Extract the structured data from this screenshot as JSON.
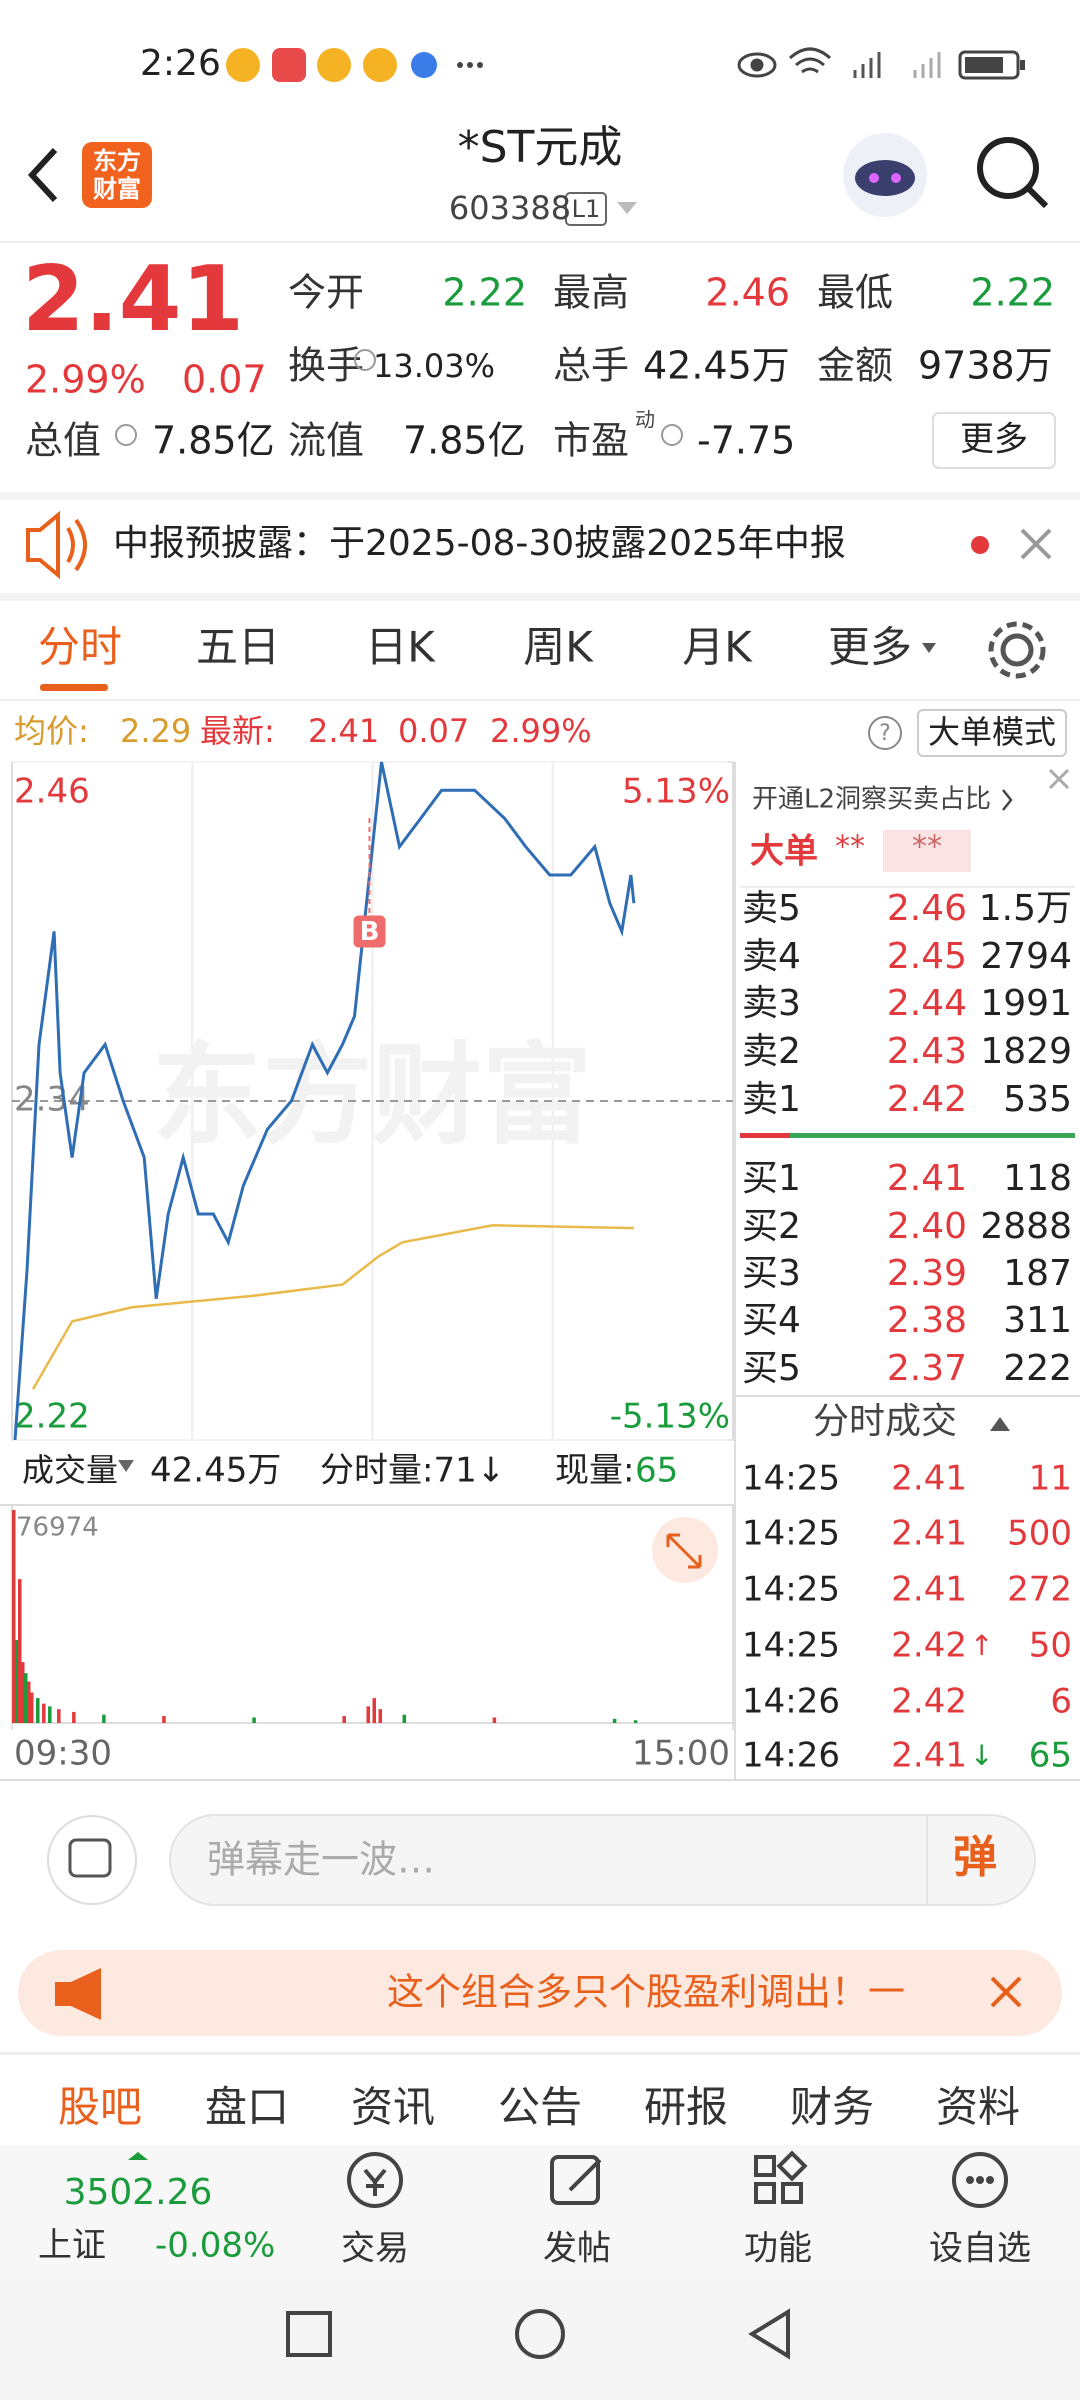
{
  "status_bar": {
    "time": "2:26"
  },
  "header": {
    "logo": [
      "东方",
      "财富"
    ],
    "title": "*ST元成",
    "code": "603388",
    "level": "L1"
  },
  "quote": {
    "price": "2.41",
    "change_pct": "2.99%",
    "change": "0.07",
    "fields": [
      {
        "label": "今开",
        "value": "2.22",
        "color": "#1a9b3c"
      },
      {
        "label": "最高",
        "value": "2.46",
        "color": "#e4393c"
      },
      {
        "label": "最低",
        "value": "2.22",
        "color": "#1a9b3c"
      },
      {
        "label": "换手",
        "value": "13.03%",
        "color": "#222222"
      },
      {
        "label": "总手",
        "value": "42.45万",
        "color": "#222222"
      },
      {
        "label": "金额",
        "value": "9738万",
        "color": "#222222"
      },
      {
        "label": "总值",
        "value": "7.85亿",
        "color": "#222222"
      },
      {
        "label": "流值",
        "value": "7.85亿",
        "color": "#222222"
      },
      {
        "label": "市盈",
        "sup": "动",
        "value": "-7.75",
        "color": "#222222"
      }
    ],
    "more": "更多"
  },
  "notice": "中报预披露：于2025-08-30披露2025年中报",
  "tabs": [
    "分时",
    "五日",
    "日K",
    "周K",
    "月K",
    "更多"
  ],
  "info": {
    "avg_label": "均价:",
    "avg": "2.29",
    "latest_label": "最新:",
    "latest": "2.41",
    "change": "0.07",
    "pct": "2.99%",
    "help": "?",
    "mode": "大单模式"
  },
  "intraday": {
    "type": "line",
    "watermark": "东方财富",
    "color": "#2f6db5",
    "avg_color": "#e9b949",
    "x": [
      1,
      5,
      9,
      14,
      16,
      20,
      24,
      31,
      37,
      44,
      48,
      52,
      57,
      62,
      67,
      72,
      77,
      85,
      93,
      100,
      105,
      110,
      114,
      118,
      121,
      123,
      129,
      136,
      143,
      154,
      164,
      171,
      179,
      186,
      194,
      199,
      203,
      206,
      207
    ],
    "values": [
      2.22,
      2.28,
      2.36,
      2.4,
      2.35,
      2.32,
      2.35,
      2.36,
      2.34,
      2.32,
      2.27,
      2.3,
      2.32,
      2.3,
      2.3,
      2.29,
      2.31,
      2.33,
      2.34,
      2.36,
      2.35,
      2.36,
      2.37,
      2.41,
      2.44,
      2.46,
      2.43,
      2.44,
      2.45,
      2.45,
      2.44,
      2.43,
      2.42,
      2.42,
      2.43,
      2.41,
      2.4,
      2.42,
      2.41
    ],
    "avg_x": [
      7,
      20,
      40,
      80,
      110,
      122,
      130,
      160,
      207
    ],
    "avg_values": [
      2.238,
      2.262,
      2.267,
      2.271,
      2.275,
      2.285,
      2.29,
      2.296,
      2.295
    ],
    "xlim": [
      0,
      240
    ],
    "ylim": [
      2.22,
      2.46
    ],
    "y2lim": [
      -5.13,
      5.13
    ],
    "yticks": [
      2.46,
      2.34,
      2.22
    ],
    "y2ticks": [
      {
        "value": 5.13,
        "label": "5.13%"
      },
      {
        "value": -5.13,
        "label": "-5.13%"
      }
    ],
    "xticks": [
      {
        "value": 0,
        "label": "09:30"
      },
      {
        "value": 240,
        "label": "15:00"
      }
    ],
    "marker": {
      "x": 119,
      "value": 2.4,
      "label": "B"
    }
  },
  "volume": {
    "label": "成交量",
    "total": "42.45万",
    "per_min": "分时量:71↓",
    "current_label": "现量:",
    "current": "65",
    "x": [
      0,
      1,
      2,
      3,
      4,
      5,
      6,
      8,
      10,
      12,
      15,
      20,
      30,
      50,
      80,
      110,
      118,
      120,
      122,
      130,
      160,
      200,
      207
    ],
    "values": [
      76974,
      30000,
      52000,
      22000,
      18000,
      15000,
      11000,
      9000,
      7000,
      6000,
      5000,
      4000,
      3000,
      2500,
      2000,
      2500,
      6000,
      9000,
      5000,
      3000,
      2000,
      1500,
      1000
    ],
    "colors": [
      "#e4393c",
      "#1a9b3c",
      "#e4393c",
      "#e4393c",
      "#1a9b3c",
      "#e4393c",
      "#e4393c",
      "#1a9b3c",
      "#e4393c",
      "#1a9b3c",
      "#e4393c",
      "#e4393c",
      "#1a9b3c",
      "#e4393c",
      "#1a9b3c",
      "#e4393c",
      "#e4393c",
      "#e4393c",
      "#e4393c",
      "#1a9b3c",
      "#e4393c",
      "#1a9b3c",
      "#1a9b3c"
    ],
    "ylim": [
      0,
      76974
    ],
    "yticks": [
      76974
    ]
  },
  "order_book": {
    "promo": "开通L2洞察买卖占比",
    "big_label": "大单",
    "big_a": "**",
    "big_b": "**",
    "asks": [
      {
        "label": "卖5",
        "price": "2.46",
        "vol": "1.5万"
      },
      {
        "label": "卖4",
        "price": "2.45",
        "vol": "2794"
      },
      {
        "label": "卖3",
        "price": "2.44",
        "vol": "1991"
      },
      {
        "label": "卖2",
        "price": "2.43",
        "vol": "1829"
      },
      {
        "label": "卖1",
        "price": "2.42",
        "vol": "535"
      }
    ],
    "bids": [
      {
        "label": "买1",
        "price": "2.41",
        "vol": "118"
      },
      {
        "label": "买2",
        "price": "2.40",
        "vol": "2888"
      },
      {
        "label": "买3",
        "price": "2.39",
        "vol": "187"
      },
      {
        "label": "买4",
        "price": "2.38",
        "vol": "311"
      },
      {
        "label": "买5",
        "price": "2.37",
        "vol": "222"
      }
    ]
  },
  "trades": {
    "title": "分时成交",
    "rows": [
      {
        "time": "14:25",
        "price": "2.41",
        "vol": "11",
        "color": "#e4393c"
      },
      {
        "time": "14:25",
        "price": "2.41",
        "vol": "500",
        "color": "#e4393c"
      },
      {
        "time": "14:25",
        "price": "2.41",
        "vol": "272",
        "color": "#e4393c"
      },
      {
        "time": "14:25",
        "price": "2.42",
        "arrow": "↑",
        "arrow_color": "#e4393c",
        "vol": "50",
        "color": "#e4393c"
      },
      {
        "time": "14:26",
        "price": "2.42",
        "vol": "6",
        "color": "#e4393c"
      },
      {
        "time": "14:26",
        "price": "2.41",
        "arrow": "↓",
        "arrow_color": "#1a9b3c",
        "vol": "65",
        "color": "#1a9b3c"
      }
    ]
  },
  "comment": {
    "placeholder": "弹幕走一波…",
    "button": "弹"
  },
  "ad": "这个组合多只个股盈利调出！一",
  "sub_tabs": [
    "股吧",
    "盘口",
    "资讯",
    "公告",
    "研报",
    "财务",
    "资料"
  ],
  "bottom_nav": {
    "index_value": "3502.26",
    "index_name": "上证",
    "index_change": "-0.08%",
    "items": [
      "交易",
      "发帖",
      "功能",
      "设自选"
    ]
  }
}
